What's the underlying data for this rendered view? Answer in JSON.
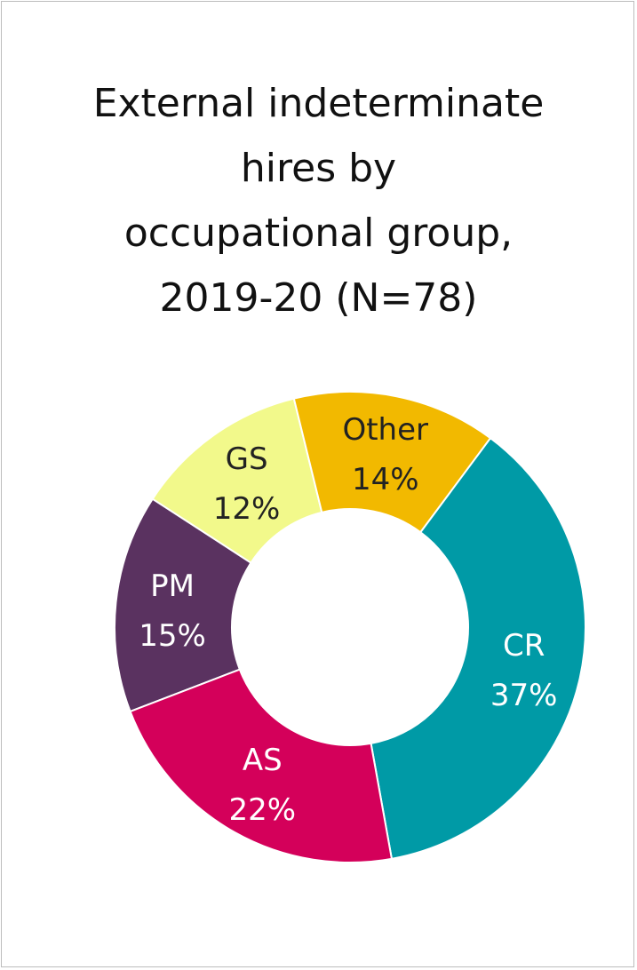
{
  "chart_data": {
    "type": "pie",
    "title_lines": [
      "External indeterminate",
      "hires by",
      "occupational group,",
      "2019-20 (N=78)"
    ],
    "slices": [
      {
        "label": "PM",
        "value_label": "15%",
        "value": 15,
        "color": "#5a3260",
        "text_color": "#ffffff"
      },
      {
        "label": "GS",
        "value_label": "12%",
        "value": 12,
        "color": "#f2f98b",
        "text_color": "#222222"
      },
      {
        "label": "Other",
        "value_label": "14%",
        "value": 14,
        "color": "#f2b900",
        "text_color": "#222222"
      },
      {
        "label": "CR",
        "value_label": "37%",
        "value": 37,
        "color": "#009aa6",
        "text_color": "#ffffff"
      },
      {
        "label": "AS",
        "value_label": "22%",
        "value": 22,
        "color": "#d4005a",
        "text_color": "#ffffff"
      }
    ]
  }
}
